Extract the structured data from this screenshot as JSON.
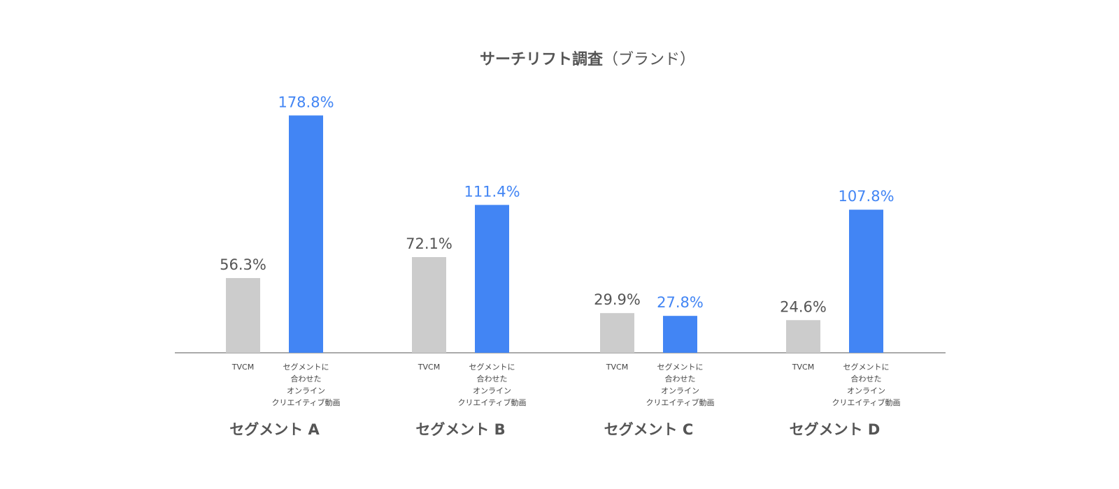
{
  "chart_data": {
    "type": "bar",
    "title": "サーチリフト調査",
    "title_suffix": "（ブランド）",
    "unit": "%",
    "ylim": [
      0,
      180
    ],
    "grid": false,
    "series_colors": {
      "tvcm": "#cccccc",
      "online": "#4285f4"
    },
    "value_label_colors": {
      "tvcm": "#555555",
      "online": "#4285f4"
    },
    "bar_labels": {
      "tvcm": [
        "TVCM"
      ],
      "online": [
        "セグメントに",
        "合わせた",
        "オンライン",
        "クリエイティブ動画"
      ]
    },
    "series": [
      {
        "name": "TVCM",
        "key": "tvcm",
        "values": [
          56.3,
          72.1,
          29.9,
          24.6
        ]
      },
      {
        "name": "セグメントに合わせたオンラインクリエイティブ動画",
        "key": "online",
        "values": [
          178.8,
          111.4,
          27.8,
          107.8
        ]
      }
    ],
    "categories": [
      "セグメント A",
      "セグメント B",
      "セグメント C",
      "セグメント D"
    ],
    "value_labels": {
      "tvcm": [
        "56.3%",
        "72.1%",
        "29.9%",
        "24.6%"
      ],
      "online": [
        "178.8%",
        "111.4%",
        "27.8%",
        "107.8%"
      ]
    }
  }
}
